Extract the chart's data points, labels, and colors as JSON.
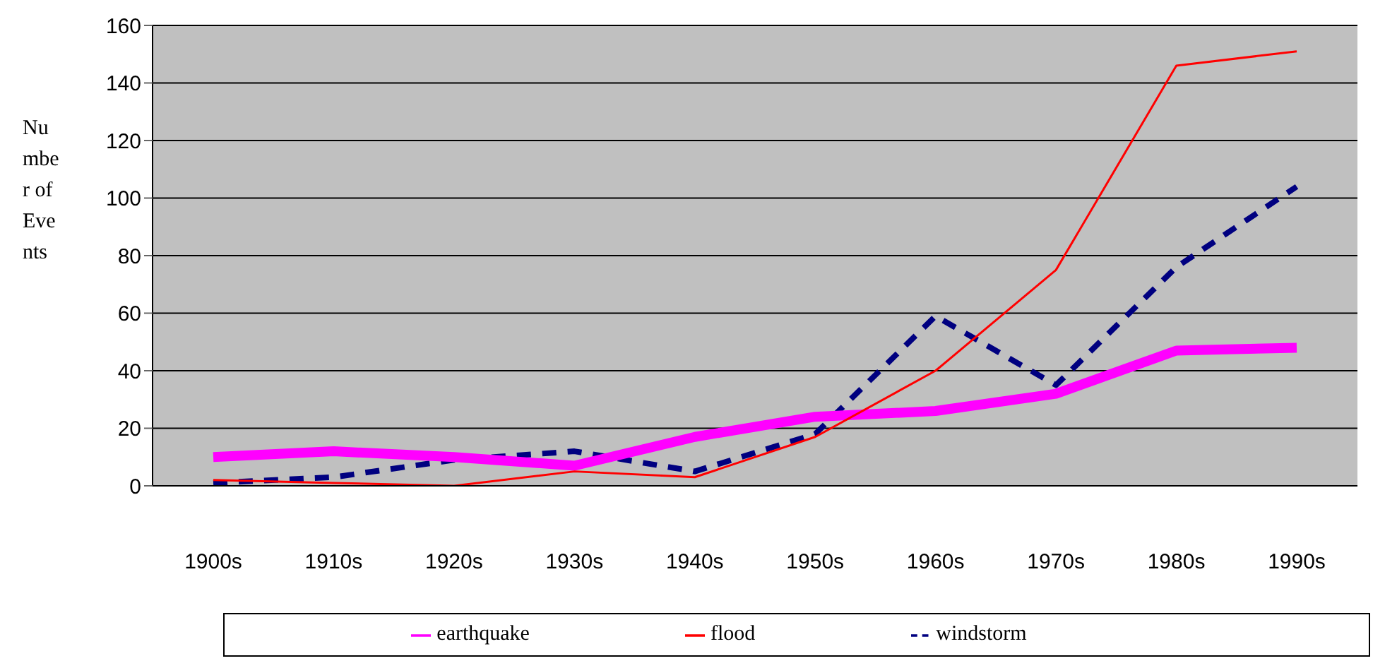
{
  "chart_data": {
    "type": "line",
    "ylabel": "Number of Events",
    "categories": [
      "1900s",
      "1910s",
      "1920s",
      "1930s",
      "1940s",
      "1950s",
      "1960s",
      "1970s",
      "1980s",
      "1990s"
    ],
    "series": [
      {
        "name": "windstorm",
        "color": "#000080",
        "line_style": "dashed",
        "values": [
          1,
          3,
          9,
          12,
          5,
          18,
          59,
          35,
          76,
          104
        ]
      },
      {
        "name": "earthquake",
        "color": "#ff00ff",
        "line_style": "solid",
        "values": [
          10,
          12,
          10,
          7,
          17,
          24,
          26,
          32,
          47,
          48
        ]
      },
      {
        "name": "flood",
        "color": "#ff0000",
        "line_style": "solid",
        "values": [
          2,
          1,
          0,
          5,
          3,
          17,
          40,
          75,
          146,
          151
        ]
      }
    ],
    "ylim": [
      0,
      160
    ],
    "yticks": [
      0,
      20,
      40,
      60,
      80,
      100,
      120,
      140,
      160
    ],
    "grid": "y",
    "legend": "bottom",
    "marker": "none"
  }
}
